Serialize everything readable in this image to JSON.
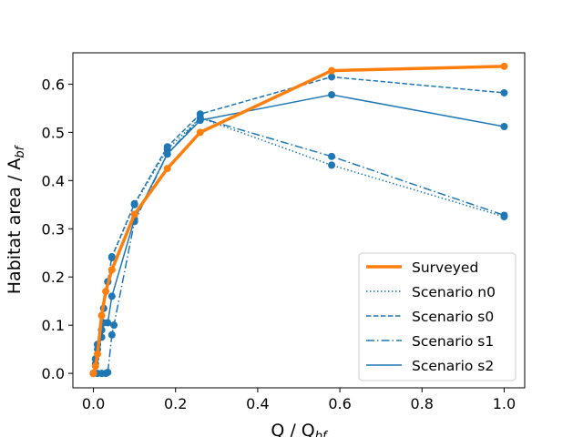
{
  "chart_data": {
    "type": "line",
    "xlabel_main": "Q / Q",
    "xlabel_sub": "bf",
    "ylabel_main": "Habitat area / A",
    "ylabel_sub": "bf",
    "xlim": [
      -0.05,
      1.05
    ],
    "ylim": [
      -0.03,
      0.665
    ],
    "x_ticks": [
      0.0,
      0.2,
      0.4,
      0.6,
      0.8,
      1.0
    ],
    "x_tick_labels": [
      "0.0",
      "0.2",
      "0.4",
      "0.6",
      "0.8",
      "1.0"
    ],
    "y_ticks": [
      0.0,
      0.1,
      0.2,
      0.3,
      0.4,
      0.5,
      0.6
    ],
    "y_tick_labels": [
      "0.0",
      "0.1",
      "0.2",
      "0.3",
      "0.4",
      "0.5",
      "0.6"
    ],
    "grid": false,
    "legend_position": "lower-right",
    "colors": {
      "surveyed": "#ff7f0e",
      "scenario": "#1f77b4"
    },
    "series": [
      {
        "name": "Surveyed",
        "style": "solid-thick",
        "markers": true,
        "x": [
          0.0,
          0.005,
          0.01,
          0.02,
          0.03,
          0.045,
          0.1,
          0.18,
          0.26,
          0.58,
          1.0
        ],
        "y": [
          0.0,
          0.015,
          0.04,
          0.12,
          0.17,
          0.215,
          0.33,
          0.425,
          0.5,
          0.628,
          0.637
        ]
      },
      {
        "name": "Scenario n0",
        "style": "dotted",
        "markers": true,
        "x": [
          0.0,
          0.005,
          0.01,
          0.02,
          0.025,
          0.035,
          0.045,
          0.1,
          0.18,
          0.26,
          0.58,
          1.0
        ],
        "y": [
          0.0,
          0.03,
          0.06,
          0.09,
          0.135,
          0.19,
          0.24,
          0.35,
          0.465,
          0.53,
          0.432,
          0.325
        ]
      },
      {
        "name": "Scenario s0",
        "style": "dashed",
        "markers": true,
        "x": [
          0.0,
          0.005,
          0.01,
          0.02,
          0.025,
          0.035,
          0.045,
          0.1,
          0.18,
          0.26,
          0.58,
          1.0
        ],
        "y": [
          0.0,
          0.03,
          0.06,
          0.09,
          0.135,
          0.19,
          0.242,
          0.352,
          0.47,
          0.538,
          0.615,
          0.582
        ]
      },
      {
        "name": "Scenario s1",
        "style": "dashdot",
        "markers": true,
        "x": [
          0.0,
          0.01,
          0.02,
          0.03,
          0.035,
          0.045,
          0.05,
          0.1,
          0.18,
          0.26,
          0.58,
          1.0
        ],
        "y": [
          0.0,
          0.0,
          0.0,
          0.0,
          0.002,
          0.08,
          0.1,
          0.315,
          0.455,
          0.53,
          0.45,
          0.328
        ]
      },
      {
        "name": "Scenario s2",
        "style": "solid",
        "markers": true,
        "x": [
          0.0,
          0.005,
          0.01,
          0.02,
          0.025,
          0.035,
          0.045,
          0.1,
          0.18,
          0.26,
          0.58,
          1.0
        ],
        "y": [
          0.0,
          0.02,
          0.05,
          0.075,
          0.105,
          0.105,
          0.16,
          0.32,
          0.455,
          0.525,
          0.578,
          0.512
        ]
      }
    ]
  }
}
